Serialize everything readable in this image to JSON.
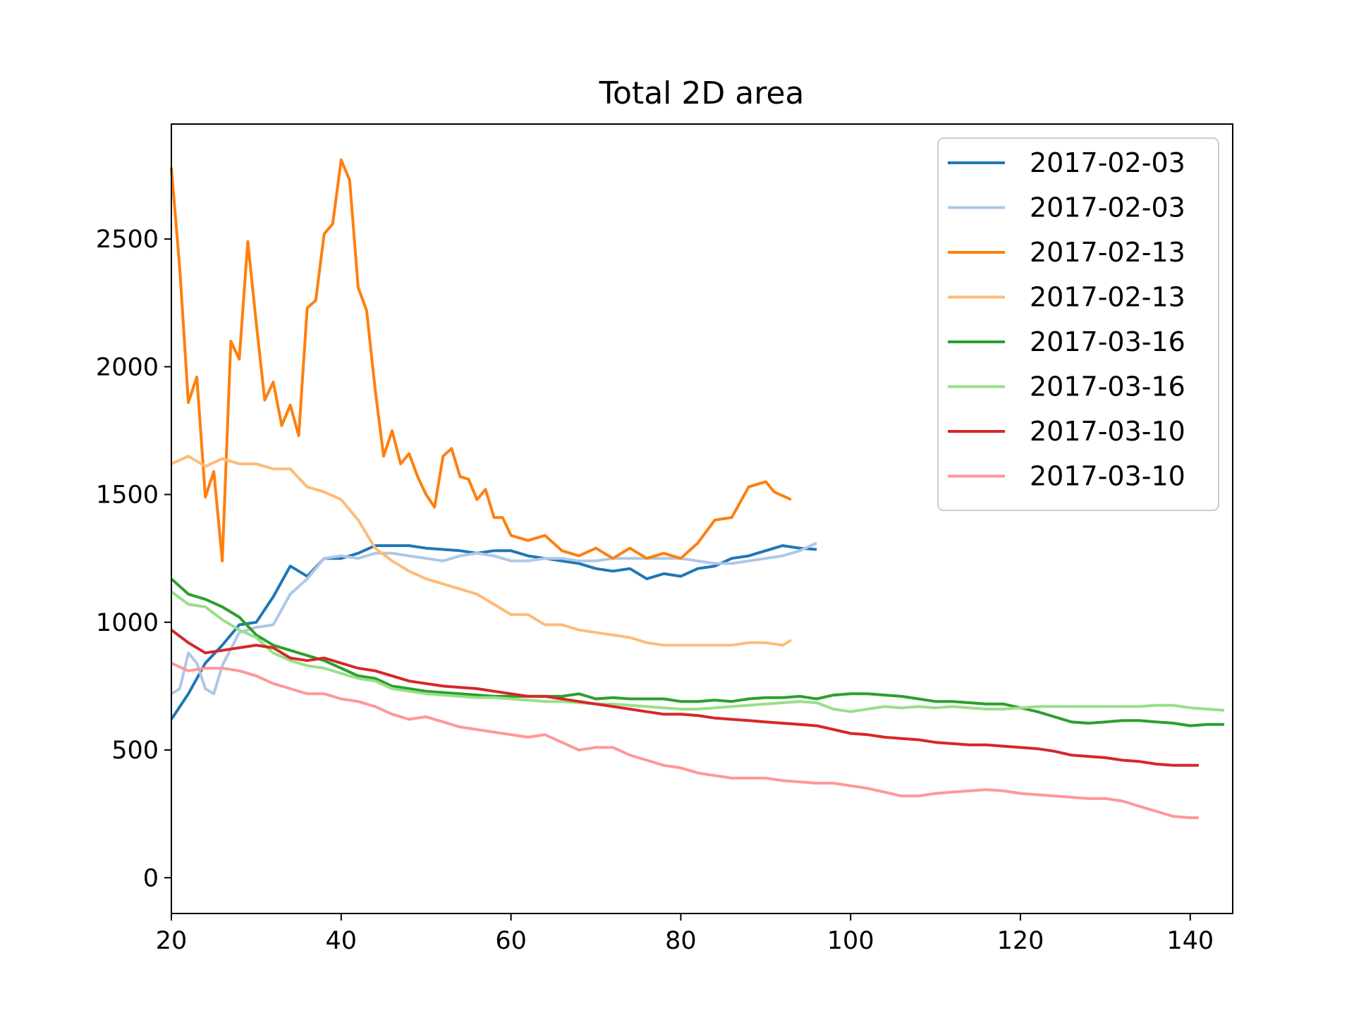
{
  "chart_data": {
    "type": "line",
    "title": "Total 2D area",
    "xlabel": "",
    "ylabel": "",
    "xlim": [
      20,
      145
    ],
    "ylim": [
      -140,
      2950
    ],
    "xticks": [
      20,
      40,
      60,
      80,
      100,
      120,
      140
    ],
    "yticks": [
      0,
      500,
      1000,
      1500,
      2000,
      2500
    ],
    "grid": false,
    "legend_position": "top-right",
    "series": [
      {
        "name": "2017-02-03",
        "color": "#1f77b4",
        "x": [
          20,
          22,
          24,
          26,
          28,
          30,
          32,
          34,
          36,
          38,
          40,
          42,
          44,
          46,
          48,
          50,
          52,
          54,
          56,
          58,
          60,
          62,
          64,
          66,
          68,
          70,
          72,
          74,
          76,
          78,
          80,
          82,
          84,
          86,
          88,
          90,
          92,
          94,
          96
        ],
        "y": [
          620,
          720,
          840,
          910,
          990,
          1000,
          1100,
          1220,
          1180,
          1250,
          1250,
          1270,
          1300,
          1300,
          1300,
          1290,
          1285,
          1280,
          1270,
          1280,
          1280,
          1260,
          1250,
          1240,
          1230,
          1210,
          1200,
          1210,
          1170,
          1190,
          1180,
          1210,
          1220,
          1250,
          1260,
          1280,
          1300,
          1290,
          1285
        ]
      },
      {
        "name": "2017-02-03",
        "color": "#aec7e8",
        "x": [
          20,
          21,
          22,
          23,
          24,
          25,
          26,
          28,
          30,
          32,
          34,
          36,
          38,
          40,
          42,
          44,
          46,
          48,
          50,
          52,
          54,
          56,
          58,
          60,
          62,
          64,
          66,
          68,
          70,
          72,
          74,
          76,
          78,
          80,
          82,
          84,
          86,
          88,
          90,
          92,
          94,
          96
        ],
        "y": [
          720,
          740,
          880,
          840,
          740,
          720,
          830,
          960,
          980,
          990,
          1110,
          1170,
          1250,
          1260,
          1250,
          1270,
          1270,
          1260,
          1250,
          1240,
          1260,
          1270,
          1260,
          1240,
          1240,
          1250,
          1250,
          1240,
          1240,
          1250,
          1250,
          1250,
          1250,
          1250,
          1240,
          1230,
          1230,
          1240,
          1250,
          1260,
          1280,
          1310
        ]
      },
      {
        "name": "2017-02-13",
        "color": "#ff7f0e",
        "x": [
          20,
          21,
          22,
          23,
          24,
          25,
          26,
          27,
          28,
          29,
          30,
          31,
          32,
          33,
          34,
          35,
          36,
          37,
          38,
          39,
          40,
          41,
          42,
          43,
          44,
          45,
          46,
          47,
          48,
          49,
          50,
          51,
          52,
          53,
          54,
          55,
          56,
          57,
          58,
          59,
          60,
          62,
          64,
          66,
          68,
          70,
          72,
          74,
          76,
          78,
          80,
          82,
          84,
          86,
          88,
          90,
          91,
          93
        ],
        "y": [
          2780,
          2380,
          1860,
          1960,
          1490,
          1590,
          1240,
          2100,
          2030,
          2490,
          2170,
          1870,
          1940,
          1770,
          1850,
          1730,
          2230,
          2260,
          2520,
          2560,
          2810,
          2730,
          2310,
          2220,
          1910,
          1650,
          1750,
          1620,
          1660,
          1570,
          1500,
          1450,
          1650,
          1680,
          1570,
          1560,
          1480,
          1520,
          1410,
          1410,
          1340,
          1320,
          1340,
          1280,
          1260,
          1290,
          1250,
          1290,
          1250,
          1270,
          1250,
          1310,
          1400,
          1410,
          1530,
          1550,
          1510,
          1480
        ]
      },
      {
        "name": "2017-02-13",
        "color": "#ffbb78",
        "x": [
          20,
          22,
          24,
          26,
          28,
          30,
          32,
          34,
          36,
          38,
          40,
          42,
          44,
          46,
          48,
          50,
          52,
          54,
          56,
          58,
          60,
          62,
          64,
          66,
          68,
          70,
          72,
          74,
          76,
          78,
          80,
          82,
          84,
          86,
          88,
          90,
          92,
          93
        ],
        "y": [
          1620,
          1650,
          1610,
          1640,
          1620,
          1620,
          1600,
          1600,
          1530,
          1510,
          1480,
          1400,
          1290,
          1240,
          1200,
          1170,
          1150,
          1130,
          1110,
          1070,
          1030,
          1030,
          990,
          990,
          970,
          960,
          950,
          940,
          920,
          910,
          910,
          910,
          910,
          910,
          920,
          920,
          910,
          930
        ]
      },
      {
        "name": "2017-03-16",
        "color": "#2ca02c",
        "x": [
          20,
          22,
          24,
          26,
          28,
          30,
          32,
          34,
          36,
          38,
          40,
          42,
          44,
          46,
          48,
          50,
          52,
          54,
          56,
          58,
          60,
          62,
          64,
          66,
          68,
          70,
          72,
          74,
          76,
          78,
          80,
          82,
          84,
          86,
          88,
          90,
          92,
          94,
          96,
          98,
          100,
          102,
          104,
          106,
          108,
          110,
          112,
          114,
          116,
          118,
          120,
          122,
          124,
          126,
          128,
          130,
          132,
          134,
          136,
          138,
          140,
          142,
          144
        ],
        "y": [
          1170,
          1110,
          1090,
          1060,
          1020,
          950,
          910,
          890,
          870,
          850,
          820,
          790,
          780,
          750,
          740,
          730,
          725,
          720,
          715,
          710,
          710,
          710,
          710,
          710,
          720,
          700,
          705,
          700,
          700,
          700,
          690,
          690,
          695,
          690,
          700,
          705,
          705,
          710,
          700,
          715,
          720,
          720,
          715,
          710,
          700,
          690,
          690,
          685,
          680,
          680,
          665,
          650,
          630,
          610,
          605,
          610,
          615,
          615,
          610,
          605,
          595,
          600,
          600
        ]
      },
      {
        "name": "2017-03-16",
        "color": "#98df8a",
        "x": [
          20,
          22,
          24,
          26,
          28,
          30,
          32,
          34,
          36,
          38,
          40,
          42,
          44,
          46,
          48,
          50,
          52,
          54,
          56,
          58,
          60,
          62,
          64,
          66,
          68,
          70,
          72,
          74,
          76,
          78,
          80,
          82,
          84,
          86,
          88,
          90,
          92,
          94,
          96,
          98,
          100,
          102,
          104,
          106,
          108,
          110,
          112,
          114,
          116,
          118,
          120,
          122,
          124,
          126,
          128,
          130,
          132,
          134,
          136,
          138,
          140,
          142,
          144
        ],
        "y": [
          1120,
          1070,
          1060,
          1010,
          970,
          940,
          880,
          850,
          830,
          820,
          800,
          780,
          770,
          740,
          730,
          720,
          715,
          710,
          705,
          705,
          700,
          695,
          690,
          690,
          685,
          680,
          680,
          675,
          670,
          665,
          660,
          660,
          665,
          670,
          675,
          680,
          685,
          690,
          685,
          660,
          650,
          660,
          670,
          665,
          670,
          665,
          670,
          665,
          660,
          660,
          665,
          670,
          670,
          670,
          670,
          670,
          670,
          670,
          675,
          675,
          665,
          660,
          655
        ]
      },
      {
        "name": "2017-03-10",
        "color": "#d62728",
        "x": [
          20,
          22,
          24,
          26,
          28,
          30,
          32,
          34,
          36,
          38,
          40,
          42,
          44,
          46,
          48,
          50,
          52,
          54,
          56,
          58,
          60,
          62,
          64,
          66,
          68,
          70,
          72,
          74,
          76,
          78,
          80,
          82,
          84,
          86,
          88,
          90,
          92,
          94,
          96,
          98,
          100,
          102,
          104,
          106,
          108,
          110,
          112,
          114,
          116,
          118,
          120,
          122,
          124,
          126,
          128,
          130,
          132,
          134,
          136,
          138,
          140,
          141
        ],
        "y": [
          970,
          920,
          880,
          890,
          900,
          910,
          900,
          860,
          850,
          860,
          840,
          820,
          810,
          790,
          770,
          760,
          750,
          745,
          740,
          730,
          720,
          710,
          710,
          700,
          690,
          680,
          670,
          660,
          650,
          640,
          640,
          635,
          625,
          620,
          615,
          610,
          605,
          600,
          595,
          580,
          565,
          560,
          550,
          545,
          540,
          530,
          525,
          520,
          520,
          515,
          510,
          505,
          495,
          480,
          475,
          470,
          460,
          455,
          445,
          440,
          440,
          440
        ]
      },
      {
        "name": "2017-03-10",
        "color": "#ff9896",
        "x": [
          20,
          22,
          24,
          26,
          28,
          30,
          32,
          34,
          36,
          38,
          40,
          42,
          44,
          46,
          48,
          50,
          52,
          54,
          56,
          58,
          60,
          62,
          64,
          66,
          68,
          70,
          72,
          74,
          76,
          78,
          80,
          82,
          84,
          86,
          88,
          90,
          92,
          94,
          96,
          98,
          100,
          102,
          104,
          106,
          108,
          110,
          112,
          114,
          116,
          118,
          120,
          122,
          124,
          126,
          128,
          130,
          132,
          134,
          136,
          138,
          140,
          141
        ],
        "y": [
          840,
          810,
          820,
          820,
          810,
          790,
          760,
          740,
          720,
          720,
          700,
          690,
          670,
          640,
          620,
          630,
          610,
          590,
          580,
          570,
          560,
          550,
          560,
          530,
          500,
          510,
          510,
          480,
          460,
          440,
          430,
          410,
          400,
          390,
          390,
          390,
          380,
          375,
          370,
          370,
          360,
          350,
          335,
          320,
          320,
          330,
          335,
          340,
          345,
          340,
          330,
          325,
          320,
          315,
          310,
          310,
          300,
          280,
          260,
          240,
          235,
          235
        ]
      }
    ]
  }
}
